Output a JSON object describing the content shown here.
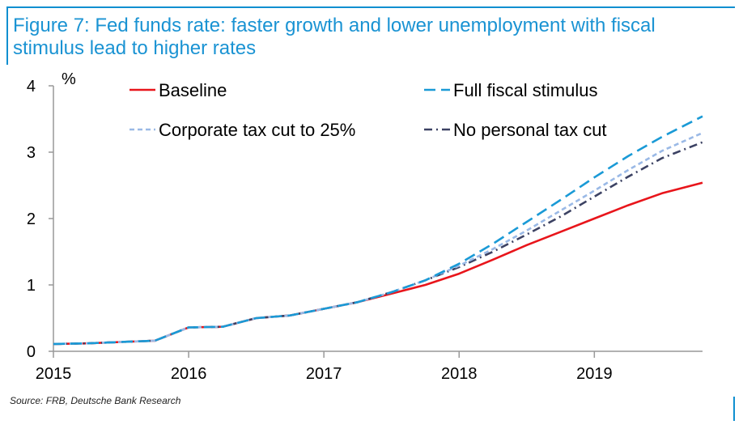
{
  "title": "Figure 7: Fed funds rate: faster growth and lower unemployment with fiscal stimulus lead to higher rates",
  "source": "Source: FRB, Deutsche Bank Research",
  "colors": {
    "accent": "#0f8fd0",
    "title": "#1a93d3"
  },
  "chart_data": {
    "type": "line",
    "ylabel": "%",
    "xlabel": "",
    "ylim": [
      0,
      4
    ],
    "xlim": [
      2015,
      2019.8
    ],
    "yticks": [
      "0",
      "1",
      "2",
      "3",
      "4"
    ],
    "xticks": [
      "2015",
      "2016",
      "2017",
      "2018",
      "2019"
    ],
    "grid": false,
    "legend_position": "top, two columns",
    "series": [
      {
        "name": "Baseline",
        "color": "#e8151b",
        "dash": "solid",
        "points": [
          [
            2015,
            0.11
          ],
          [
            2015.25,
            0.12
          ],
          [
            2015.5,
            0.14
          ],
          [
            2015.75,
            0.16
          ],
          [
            2016,
            0.36
          ],
          [
            2016.25,
            0.37
          ],
          [
            2016.5,
            0.5
          ],
          [
            2016.75,
            0.54
          ],
          [
            2017,
            0.64
          ],
          [
            2017.25,
            0.74
          ],
          [
            2017.5,
            0.87
          ],
          [
            2017.75,
            1.0
          ],
          [
            2018,
            1.17
          ],
          [
            2018.25,
            1.38
          ],
          [
            2018.5,
            1.6
          ],
          [
            2018.75,
            1.8
          ],
          [
            2019,
            2.0
          ],
          [
            2019.25,
            2.2
          ],
          [
            2019.5,
            2.38
          ],
          [
            2019.8,
            2.54
          ]
        ]
      },
      {
        "name": "Full fiscal stimulus",
        "color": "#1a9ad6",
        "dash": "long-dash",
        "points": [
          [
            2015,
            0.11
          ],
          [
            2015.25,
            0.12
          ],
          [
            2015.5,
            0.14
          ],
          [
            2015.75,
            0.16
          ],
          [
            2016,
            0.36
          ],
          [
            2016.25,
            0.37
          ],
          [
            2016.5,
            0.5
          ],
          [
            2016.75,
            0.54
          ],
          [
            2017,
            0.64
          ],
          [
            2017.25,
            0.74
          ],
          [
            2017.5,
            0.89
          ],
          [
            2017.75,
            1.07
          ],
          [
            2018,
            1.32
          ],
          [
            2018.25,
            1.62
          ],
          [
            2018.5,
            1.95
          ],
          [
            2018.75,
            2.28
          ],
          [
            2019,
            2.62
          ],
          [
            2019.25,
            2.94
          ],
          [
            2019.5,
            3.23
          ],
          [
            2019.8,
            3.54
          ]
        ]
      },
      {
        "name": "Corporate tax cut to 25%",
        "color": "#9ab9e6",
        "dash": "short-dash",
        "points": [
          [
            2015,
            0.11
          ],
          [
            2015.25,
            0.12
          ],
          [
            2015.5,
            0.14
          ],
          [
            2015.75,
            0.16
          ],
          [
            2016,
            0.36
          ],
          [
            2016.25,
            0.37
          ],
          [
            2016.5,
            0.5
          ],
          [
            2016.75,
            0.54
          ],
          [
            2017,
            0.64
          ],
          [
            2017.25,
            0.74
          ],
          [
            2017.5,
            0.89
          ],
          [
            2017.75,
            1.07
          ],
          [
            2018,
            1.29
          ],
          [
            2018.25,
            1.54
          ],
          [
            2018.5,
            1.82
          ],
          [
            2018.75,
            2.12
          ],
          [
            2019,
            2.42
          ],
          [
            2019.25,
            2.73
          ],
          [
            2019.5,
            3.02
          ],
          [
            2019.8,
            3.29
          ]
        ]
      },
      {
        "name": "No personal tax cut",
        "color": "#3c4263",
        "dash": "dash-dot",
        "points": [
          [
            2015,
            0.11
          ],
          [
            2015.25,
            0.12
          ],
          [
            2015.5,
            0.14
          ],
          [
            2015.75,
            0.16
          ],
          [
            2016,
            0.36
          ],
          [
            2016.25,
            0.37
          ],
          [
            2016.5,
            0.5
          ],
          [
            2016.75,
            0.54
          ],
          [
            2017,
            0.64
          ],
          [
            2017.25,
            0.74
          ],
          [
            2017.5,
            0.89
          ],
          [
            2017.75,
            1.07
          ],
          [
            2018,
            1.27
          ],
          [
            2018.25,
            1.5
          ],
          [
            2018.5,
            1.76
          ],
          [
            2018.75,
            2.03
          ],
          [
            2019,
            2.33
          ],
          [
            2019.25,
            2.63
          ],
          [
            2019.5,
            2.91
          ],
          [
            2019.8,
            3.15
          ]
        ]
      }
    ]
  }
}
